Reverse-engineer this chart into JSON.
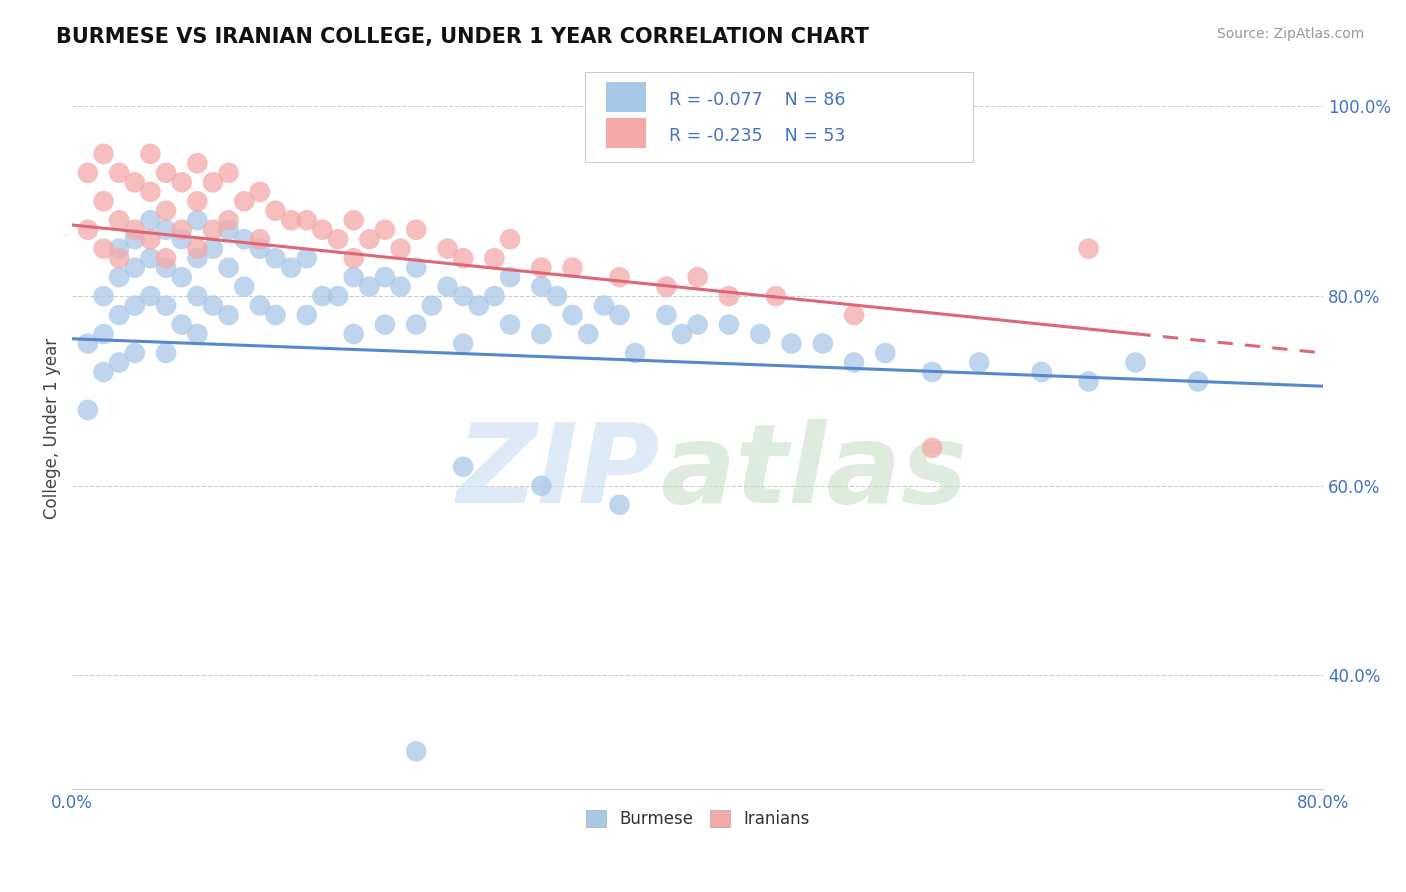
{
  "title": "BURMESE VS IRANIAN COLLEGE, UNDER 1 YEAR CORRELATION CHART",
  "source": "Source: ZipAtlas.com",
  "ylabel": "College, Under 1 year",
  "xlim": [
    0.0,
    0.8
  ],
  "ylim": [
    0.28,
    1.04
  ],
  "xtick_positions": [
    0.0,
    0.1,
    0.2,
    0.3,
    0.4,
    0.5,
    0.6,
    0.7,
    0.8
  ],
  "xticklabels": [
    "0.0%",
    "",
    "",
    "",
    "",
    "",
    "",
    "",
    "80.0%"
  ],
  "ytick_positions": [
    0.4,
    0.6,
    0.8,
    1.0
  ],
  "yticklabels": [
    "40.0%",
    "60.0%",
    "80.0%",
    "100.0%"
  ],
  "blue_color": "#a8c8e8",
  "pink_color": "#f4a8a8",
  "blue_line_color": "#5588cc",
  "pink_line_color": "#dd6677",
  "blue_line_y0": 0.755,
  "blue_line_y1": 0.705,
  "pink_line_y0": 0.875,
  "pink_line_y1": 0.74,
  "burmese_x": [
    0.01,
    0.01,
    0.02,
    0.02,
    0.02,
    0.03,
    0.03,
    0.03,
    0.03,
    0.04,
    0.04,
    0.04,
    0.04,
    0.05,
    0.05,
    0.05,
    0.06,
    0.06,
    0.06,
    0.06,
    0.07,
    0.07,
    0.07,
    0.08,
    0.08,
    0.08,
    0.08,
    0.09,
    0.09,
    0.1,
    0.1,
    0.1,
    0.11,
    0.11,
    0.12,
    0.12,
    0.13,
    0.13,
    0.14,
    0.15,
    0.15,
    0.16,
    0.17,
    0.18,
    0.18,
    0.19,
    0.2,
    0.2,
    0.21,
    0.22,
    0.22,
    0.23,
    0.24,
    0.25,
    0.25,
    0.26,
    0.27,
    0.28,
    0.28,
    0.3,
    0.3,
    0.31,
    0.32,
    0.33,
    0.34,
    0.35,
    0.36,
    0.38,
    0.39,
    0.4,
    0.42,
    0.44,
    0.46,
    0.48,
    0.5,
    0.52,
    0.55,
    0.58,
    0.62,
    0.65,
    0.68,
    0.72,
    0.25,
    0.3,
    0.35,
    0.22
  ],
  "burmese_y": [
    0.75,
    0.68,
    0.8,
    0.76,
    0.72,
    0.85,
    0.82,
    0.78,
    0.73,
    0.86,
    0.83,
    0.79,
    0.74,
    0.88,
    0.84,
    0.8,
    0.87,
    0.83,
    0.79,
    0.74,
    0.86,
    0.82,
    0.77,
    0.88,
    0.84,
    0.8,
    0.76,
    0.85,
    0.79,
    0.87,
    0.83,
    0.78,
    0.86,
    0.81,
    0.85,
    0.79,
    0.84,
    0.78,
    0.83,
    0.84,
    0.78,
    0.8,
    0.8,
    0.82,
    0.76,
    0.81,
    0.82,
    0.77,
    0.81,
    0.83,
    0.77,
    0.79,
    0.81,
    0.8,
    0.75,
    0.79,
    0.8,
    0.82,
    0.77,
    0.81,
    0.76,
    0.8,
    0.78,
    0.76,
    0.79,
    0.78,
    0.74,
    0.78,
    0.76,
    0.77,
    0.77,
    0.76,
    0.75,
    0.75,
    0.73,
    0.74,
    0.72,
    0.73,
    0.72,
    0.71,
    0.73,
    0.71,
    0.62,
    0.6,
    0.58,
    0.32
  ],
  "iranian_x": [
    0.01,
    0.01,
    0.02,
    0.02,
    0.02,
    0.03,
    0.03,
    0.03,
    0.04,
    0.04,
    0.05,
    0.05,
    0.05,
    0.06,
    0.06,
    0.06,
    0.07,
    0.07,
    0.08,
    0.08,
    0.08,
    0.09,
    0.09,
    0.1,
    0.1,
    0.11,
    0.12,
    0.12,
    0.13,
    0.14,
    0.15,
    0.16,
    0.17,
    0.18,
    0.18,
    0.19,
    0.2,
    0.21,
    0.22,
    0.24,
    0.25,
    0.27,
    0.28,
    0.3,
    0.32,
    0.35,
    0.38,
    0.4,
    0.42,
    0.45,
    0.5,
    0.55,
    0.65
  ],
  "iranian_y": [
    0.93,
    0.87,
    0.95,
    0.9,
    0.85,
    0.93,
    0.88,
    0.84,
    0.92,
    0.87,
    0.95,
    0.91,
    0.86,
    0.93,
    0.89,
    0.84,
    0.92,
    0.87,
    0.94,
    0.9,
    0.85,
    0.92,
    0.87,
    0.93,
    0.88,
    0.9,
    0.91,
    0.86,
    0.89,
    0.88,
    0.88,
    0.87,
    0.86,
    0.88,
    0.84,
    0.86,
    0.87,
    0.85,
    0.87,
    0.85,
    0.84,
    0.84,
    0.86,
    0.83,
    0.83,
    0.82,
    0.81,
    0.82,
    0.8,
    0.8,
    0.78,
    0.64,
    0.85
  ]
}
